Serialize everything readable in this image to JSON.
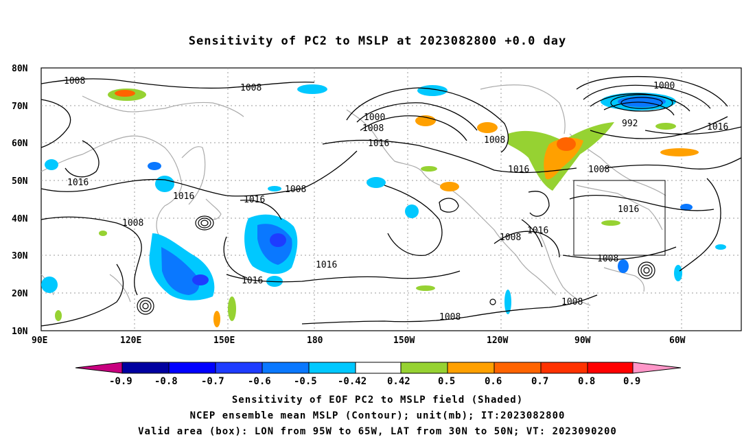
{
  "title": "Sensitivity of PC2 to MSLP at 2023082800 +0.0 day",
  "lat_labels": [
    "80N",
    "70N",
    "60N",
    "50N",
    "40N",
    "30N",
    "20N",
    "10N"
  ],
  "lon_labels": [
    "90E",
    "120E",
    "150E",
    "180",
    "150W",
    "120W",
    "90W",
    "60W"
  ],
  "contour_labels": [
    {
      "text": "1008"
    },
    {
      "text": "1008"
    },
    {
      "text": "1000"
    },
    {
      "text": "1008"
    },
    {
      "text": "1016"
    },
    {
      "text": "1008"
    },
    {
      "text": "1000"
    },
    {
      "text": "992"
    },
    {
      "text": "1016"
    },
    {
      "text": "1016"
    },
    {
      "text": "1016"
    },
    {
      "text": "1016"
    },
    {
      "text": "1008"
    },
    {
      "text": "1008"
    },
    {
      "text": "1016"
    },
    {
      "text": "1008"
    },
    {
      "text": "1016"
    },
    {
      "text": "1016"
    },
    {
      "text": "1008"
    },
    {
      "text": "1016"
    },
    {
      "text": "1016"
    },
    {
      "text": "1008"
    },
    {
      "text": "1008"
    },
    {
      "text": "1008"
    }
  ],
  "valid_box": {
    "lon_min": "95W",
    "lon_max": "65W",
    "lat_min": "30N",
    "lat_max": "50N"
  },
  "colorbar": {
    "labels": [
      "-0.9",
      "-0.8",
      "-0.7",
      "-0.6",
      "-0.5",
      "-0.42",
      "0.42",
      "0.5",
      "0.6",
      "0.7",
      "0.8",
      "0.9"
    ],
    "colors": [
      "#c8007f",
      "#0000a0",
      "#0000ff",
      "#1e3cff",
      "#0a78ff",
      "#00c8ff",
      "#ffffff",
      "#96d232",
      "#ffa000",
      "#ff6400",
      "#ff3200",
      "#ff0000",
      "#ff96c8"
    ]
  },
  "footer": {
    "line1": "Sensitivity of EOF PC2 to MSLP field (Shaded)",
    "line2": "NCEP ensemble mean MSLP (Contour); unit(mb); IT:2023082800",
    "line3": "Valid area (box): LON from 95W to 65W, LAT from 30N to 50N; VT: 2023090200"
  }
}
